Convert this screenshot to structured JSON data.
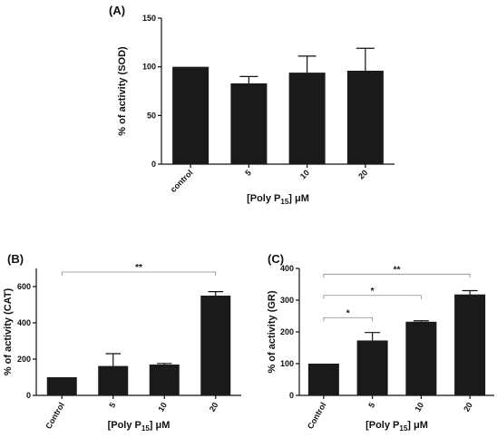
{
  "chart_data": [
    {
      "panel": "(A)",
      "type": "bar",
      "categories": [
        "control",
        "5",
        "10",
        "20"
      ],
      "values": [
        100,
        83,
        94,
        96
      ],
      "errors": [
        0,
        7,
        17,
        23
      ],
      "ylabel": "%  of activity (SOD)",
      "xlabel": {
        "prefix": "[Poly P",
        "sub": "15",
        "suffix": "] μM"
      },
      "ylim": [
        0,
        150
      ],
      "yticks": [
        0,
        50,
        100,
        150
      ],
      "significance": []
    },
    {
      "panel": "(B)",
      "type": "bar",
      "categories": [
        "Control",
        "5",
        "10",
        "20"
      ],
      "values": [
        100,
        162,
        170,
        550
      ],
      "errors": [
        0,
        68,
        6,
        22
      ],
      "ylabel": "% of activity (CAT)",
      "xlabel": {
        "prefix": "[Poly P",
        "sub": "15",
        "suffix": "] μM"
      },
      "ylim": [
        0,
        700
      ],
      "yticks": [
        0,
        200,
        400,
        600
      ],
      "significance": [
        {
          "from": 0,
          "to": 3,
          "label": "**",
          "y": 680
        }
      ]
    },
    {
      "panel": "(C)",
      "type": "bar",
      "categories": [
        "Control",
        "5",
        "10",
        "20"
      ],
      "values": [
        100,
        173,
        232,
        318
      ],
      "errors": [
        0,
        25,
        3,
        12
      ],
      "ylabel": "% of activity (GR)",
      "xlabel": {
        "prefix": "[Poly P",
        "sub": "15",
        "suffix": "] μM"
      },
      "ylim": [
        0,
        400
      ],
      "yticks": [
        0,
        100,
        200,
        300,
        400
      ],
      "significance": [
        {
          "from": 0,
          "to": 1,
          "label": "*",
          "y": 245
        },
        {
          "from": 0,
          "to": 2,
          "label": "*",
          "y": 315
        },
        {
          "from": 0,
          "to": 3,
          "label": "**",
          "y": 382
        }
      ]
    }
  ]
}
